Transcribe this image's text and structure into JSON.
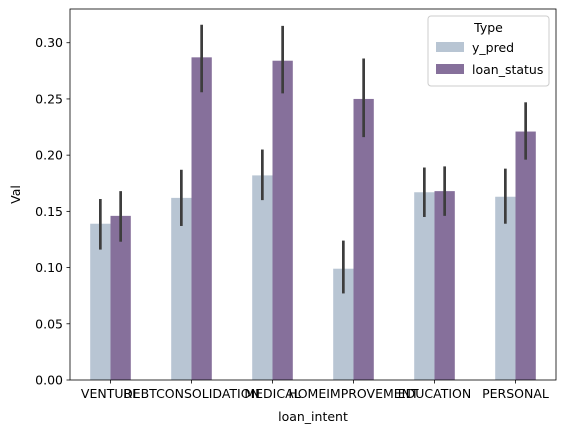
{
  "chart_data": {
    "type": "bar",
    "title": "",
    "xlabel": "loan_intent",
    "ylabel": "Val",
    "ylim": [
      0,
      0.33
    ],
    "yticks": [
      0.0,
      0.05,
      0.1,
      0.15,
      0.2,
      0.25,
      0.3
    ],
    "ytick_labels": [
      "0.00",
      "0.05",
      "0.10",
      "0.15",
      "0.20",
      "0.25",
      "0.30"
    ],
    "categories": [
      "VENTURE",
      "DEBTCONSOLIDATION",
      "MEDICAL",
      "HOMEIMPROVEMENT",
      "EDUCATION",
      "PERSONAL"
    ],
    "grid": false,
    "legend": {
      "title": "Type",
      "placement": "top-right"
    },
    "series": [
      {
        "name": "y_pred",
        "color": "#b8c5d3",
        "values": [
          0.139,
          0.162,
          0.182,
          0.099,
          0.167,
          0.163
        ],
        "ci_low": [
          0.116,
          0.137,
          0.16,
          0.077,
          0.145,
          0.139
        ],
        "ci_high": [
          0.161,
          0.187,
          0.205,
          0.124,
          0.189,
          0.188
        ]
      },
      {
        "name": "loan_status",
        "color": "#86709b",
        "values": [
          0.146,
          0.287,
          0.284,
          0.25,
          0.168,
          0.221
        ],
        "ci_low": [
          0.123,
          0.256,
          0.255,
          0.216,
          0.146,
          0.196
        ],
        "ci_high": [
          0.168,
          0.316,
          0.315,
          0.286,
          0.19,
          0.247
        ]
      }
    ],
    "errorbar_color": "#3d3d3d"
  }
}
